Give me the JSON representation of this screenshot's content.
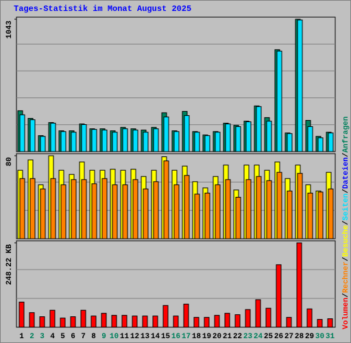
{
  "title": "Tages-Statistik im Monat August 2025",
  "legend_separator": "/",
  "legend": [
    {
      "name": "Volumen",
      "color": "#ff0000"
    },
    {
      "name": "Rechner",
      "color": "#ff8000"
    },
    {
      "name": "Besuche",
      "color": "#ffff00"
    },
    {
      "name": "Seiten",
      "color": "#00e0ff"
    },
    {
      "name": "Dateien",
      "color": "#0000ff"
    },
    {
      "name": "Anfragen",
      "color": "#00805c"
    }
  ],
  "chart_data": [
    {
      "type": "bar",
      "ylim": [
        0,
        1043
      ],
      "yticks": [
        1043
      ],
      "series": [
        {
          "color": "#00805c",
          "values": [
            322,
            262,
            126,
            229,
            164,
            164,
            218,
            180,
            180,
            164,
            191,
            180,
            170,
            191,
            306,
            164,
            317,
            158,
            131,
            158,
            224,
            207,
            240,
            360,
            268,
            803,
            147,
            1043,
            246,
            120,
            153
          ]
        },
        {
          "color": "#00e0ff",
          "values": [
            290,
            251,
            120,
            224,
            158,
            153,
            213,
            175,
            170,
            153,
            180,
            170,
            153,
            180,
            273,
            158,
            284,
            153,
            126,
            153,
            218,
            197,
            235,
            355,
            240,
            792,
            142,
            1037,
            197,
            109,
            147
          ]
        }
      ]
    },
    {
      "type": "bar",
      "ylim": [
        0,
        80
      ],
      "yticks": [
        80
      ],
      "series": [
        {
          "color": "#ffff00",
          "values": [
            66,
            76,
            52,
            80,
            66,
            62,
            74,
            66,
            66,
            67,
            66,
            67,
            60,
            66,
            79,
            66,
            70,
            55,
            49,
            60,
            71,
            47,
            71,
            71,
            66,
            74,
            58,
            71,
            52,
            46,
            64
          ]
        },
        {
          "color": "#ff8000",
          "values": [
            58,
            58,
            48,
            58,
            52,
            57,
            57,
            53,
            58,
            52,
            52,
            57,
            48,
            55,
            75,
            52,
            61,
            43,
            44,
            52,
            57,
            40,
            57,
            60,
            56,
            64,
            46,
            63,
            44,
            45,
            48
          ]
        }
      ]
    },
    {
      "type": "bar",
      "ylim": [
        0,
        248.22
      ],
      "yticks": [
        {
          "value": 248.22,
          "label": "248.22 KB"
        }
      ],
      "series": [
        {
          "color": "#ff0000",
          "values": [
            74,
            43,
            31,
            50,
            27,
            31,
            50,
            33,
            41,
            35,
            35,
            33,
            33,
            33,
            64,
            33,
            68,
            29,
            29,
            35,
            41,
            37,
            52,
            81,
            56,
            184,
            29,
            248.22,
            54,
            23,
            25
          ]
        }
      ],
      "categories": [
        "1",
        "2",
        "3",
        "4",
        "5",
        "6",
        "7",
        "8",
        "9",
        "10",
        "11",
        "12",
        "13",
        "14",
        "15",
        "16",
        "17",
        "18",
        "19",
        "20",
        "21",
        "22",
        "23",
        "24",
        "25",
        "26",
        "27",
        "28",
        "29",
        "30",
        "31"
      ],
      "category_colors": [
        "#000000",
        "#00805c",
        "#00805c",
        "#000000",
        "#000000",
        "#000000",
        "#000000",
        "#000000",
        "#00805c",
        "#00805c",
        "#000000",
        "#000000",
        "#000000",
        "#000000",
        "#000000",
        "#00805c",
        "#00805c",
        "#000000",
        "#000000",
        "#000000",
        "#000000",
        "#000000",
        "#00805c",
        "#00805c",
        "#000000",
        "#000000",
        "#000000",
        "#000000",
        "#000000",
        "#00805c",
        "#00805c"
      ]
    }
  ]
}
